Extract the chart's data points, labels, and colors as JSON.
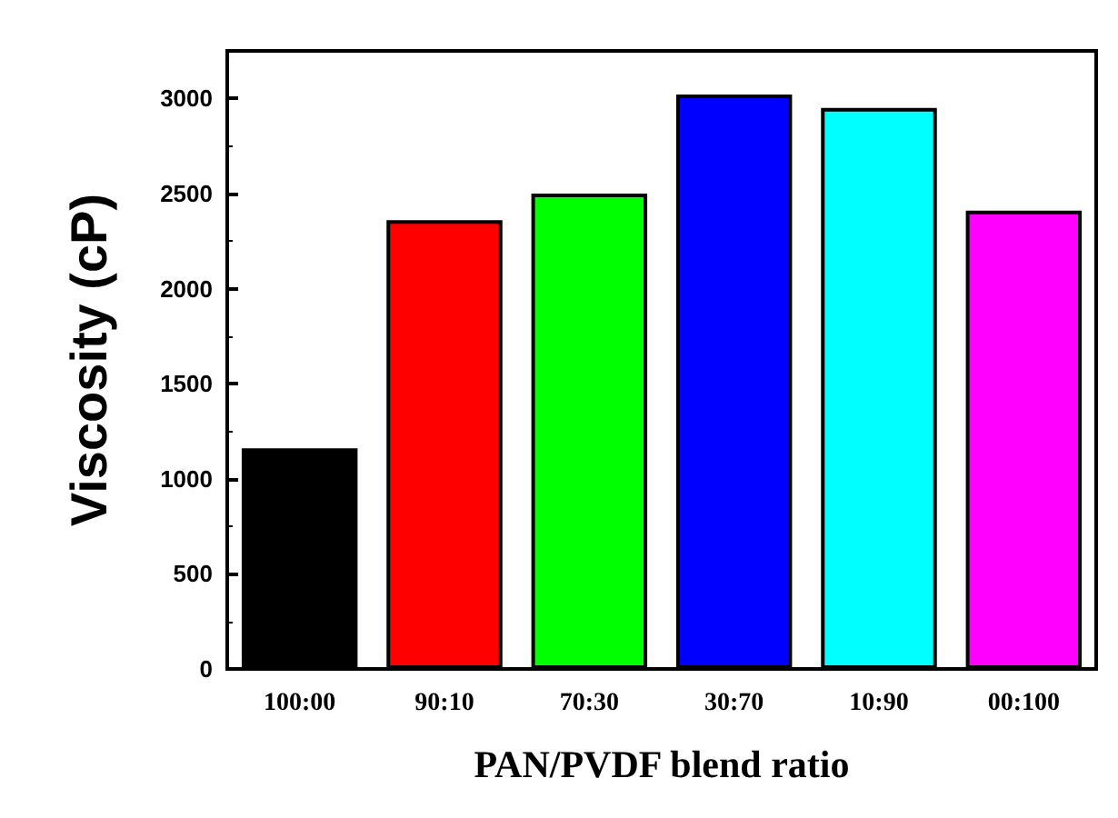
{
  "chart_data": {
    "type": "bar",
    "xlabel": "PAN/PVDF blend ratio",
    "ylabel": "Viscosity (cP)",
    "categories": [
      "100:00",
      "90:10",
      "70:30",
      "30:70",
      "10:90",
      "00:100"
    ],
    "values": [
      1160,
      2360,
      2500,
      3020,
      2950,
      2410
    ],
    "colors": [
      "#000000",
      "#ff0000",
      "#00ff00",
      "#0000ff",
      "#00ffff",
      "#ff00ff"
    ],
    "ylim": [
      0,
      3250
    ],
    "yticks": [
      0,
      500,
      1000,
      1500,
      2000,
      2500,
      3000
    ],
    "grid": false
  }
}
